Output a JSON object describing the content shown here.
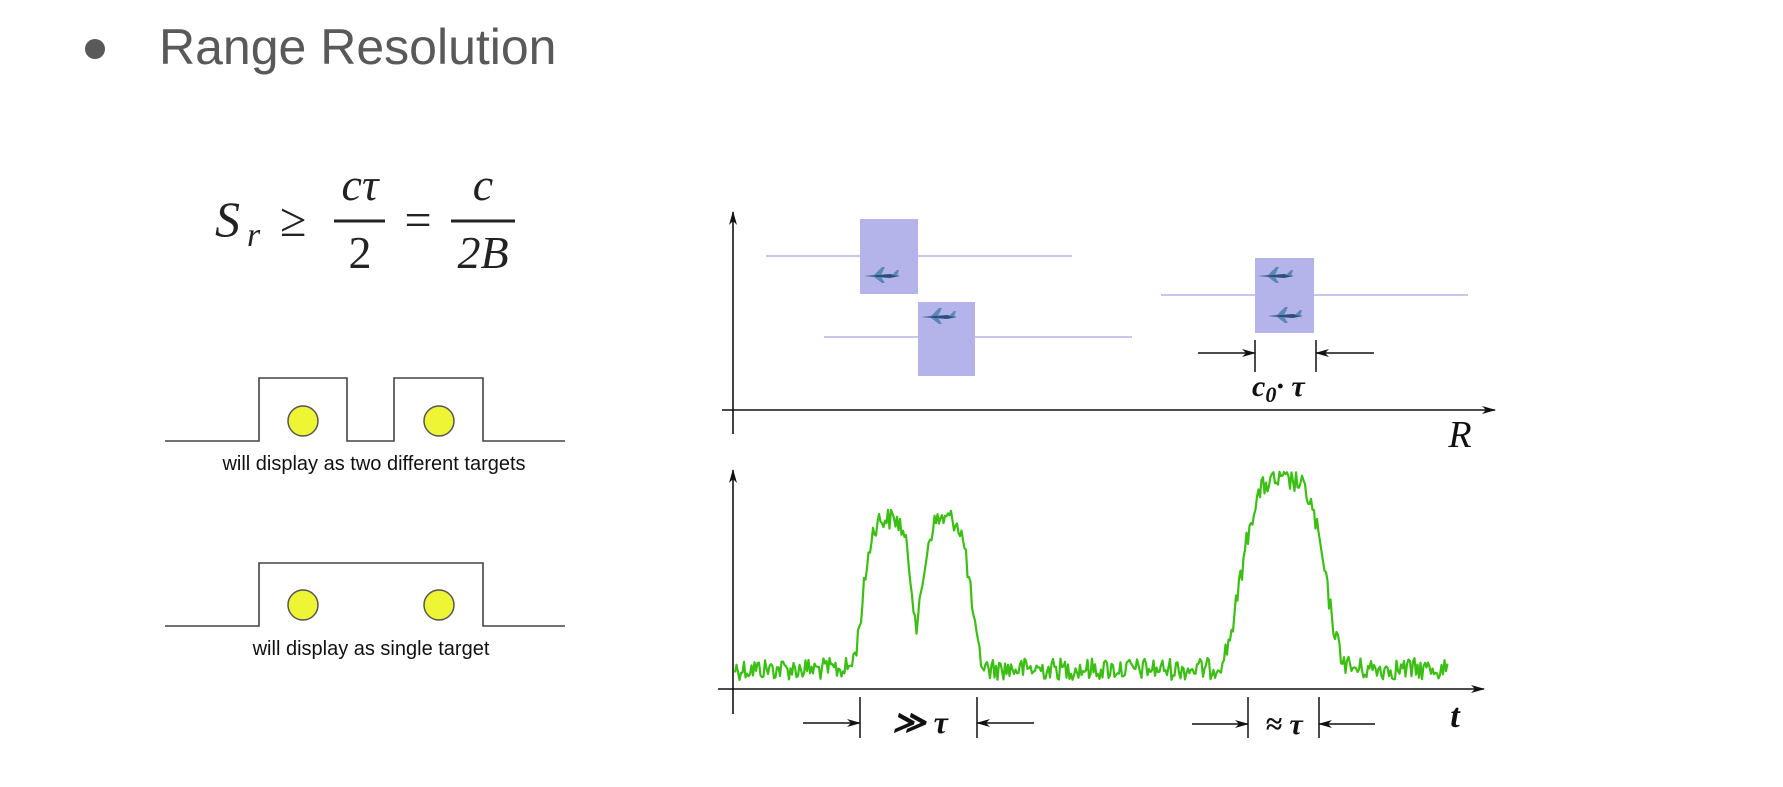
{
  "slide": {
    "title": "Range Resolution",
    "formula": {
      "symbol": "S",
      "subscript": "r",
      "relation": "≥",
      "numerator1": "cτ",
      "denominator1": "2",
      "equals": "=",
      "numerator2": "c",
      "denominator2": "2B"
    },
    "diagrams": [
      {
        "caption": "will display as two different targets"
      },
      {
        "caption": "will display as single target"
      }
    ],
    "figure": {
      "pulse_label": {
        "base": "c",
        "subscript": "0",
        "rest": "· τ"
      },
      "top_axis_label": "R",
      "bottom_axis_label": "t",
      "much_greater_label": "≫ τ",
      "approx_label": "≈ τ"
    }
  }
}
